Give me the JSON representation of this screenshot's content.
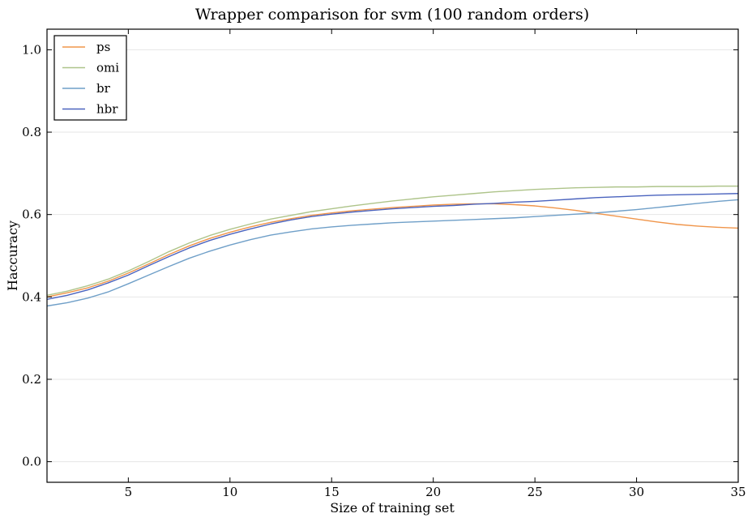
{
  "chart_data": {
    "type": "line",
    "title": "Wrapper comparison for svm (100 random orders)",
    "xlabel": "Size of training set",
    "ylabel": "Haccuracy",
    "xlim": [
      1,
      35
    ],
    "ylim": [
      -0.05,
      1.05
    ],
    "xticks": [
      5,
      10,
      15,
      20,
      25,
      30,
      35
    ],
    "yticks": [
      0.0,
      0.2,
      0.4,
      0.6,
      0.8,
      1.0
    ],
    "ytick_labels": [
      "0.0",
      "0.2",
      "0.4",
      "0.6",
      "0.8",
      "1.0"
    ],
    "grid": "horizontal",
    "legend_position": "top-left",
    "x": [
      1,
      2,
      3,
      4,
      5,
      6,
      7,
      8,
      9,
      10,
      11,
      12,
      13,
      14,
      15,
      16,
      17,
      18,
      19,
      20,
      21,
      22,
      23,
      24,
      25,
      26,
      27,
      28,
      29,
      30,
      31,
      32,
      33,
      34,
      35
    ],
    "series": [
      {
        "name": "ps",
        "color": "#f0954a",
        "values": [
          0.4,
          0.41,
          0.422,
          0.438,
          0.458,
          0.48,
          0.503,
          0.524,
          0.542,
          0.557,
          0.57,
          0.581,
          0.59,
          0.598,
          0.604,
          0.609,
          0.613,
          0.617,
          0.62,
          0.623,
          0.625,
          0.626,
          0.626,
          0.624,
          0.621,
          0.616,
          0.61,
          0.603,
          0.596,
          0.589,
          0.582,
          0.576,
          0.572,
          0.569,
          0.567
        ]
      },
      {
        "name": "omi",
        "color": "#aec48a",
        "values": [
          0.404,
          0.414,
          0.427,
          0.443,
          0.463,
          0.486,
          0.51,
          0.531,
          0.549,
          0.564,
          0.577,
          0.589,
          0.598,
          0.607,
          0.614,
          0.621,
          0.627,
          0.633,
          0.638,
          0.643,
          0.647,
          0.651,
          0.655,
          0.658,
          0.661,
          0.663,
          0.665,
          0.666,
          0.667,
          0.667,
          0.668,
          0.668,
          0.668,
          0.669,
          0.669
        ]
      },
      {
        "name": "br",
        "color": "#6f9fc8",
        "values": [
          0.378,
          0.386,
          0.397,
          0.412,
          0.432,
          0.453,
          0.474,
          0.494,
          0.511,
          0.526,
          0.539,
          0.55,
          0.558,
          0.565,
          0.57,
          0.574,
          0.577,
          0.58,
          0.582,
          0.584,
          0.586,
          0.588,
          0.59,
          0.592,
          0.595,
          0.598,
          0.601,
          0.604,
          0.608,
          0.612,
          0.617,
          0.622,
          0.627,
          0.632,
          0.636
        ]
      },
      {
        "name": "hbr",
        "color": "#4a63be",
        "values": [
          0.394,
          0.404,
          0.417,
          0.434,
          0.453,
          0.476,
          0.498,
          0.519,
          0.537,
          0.552,
          0.565,
          0.577,
          0.587,
          0.595,
          0.601,
          0.606,
          0.61,
          0.614,
          0.617,
          0.62,
          0.622,
          0.625,
          0.627,
          0.63,
          0.632,
          0.635,
          0.638,
          0.641,
          0.643,
          0.645,
          0.647,
          0.648,
          0.649,
          0.65,
          0.651
        ]
      }
    ]
  }
}
